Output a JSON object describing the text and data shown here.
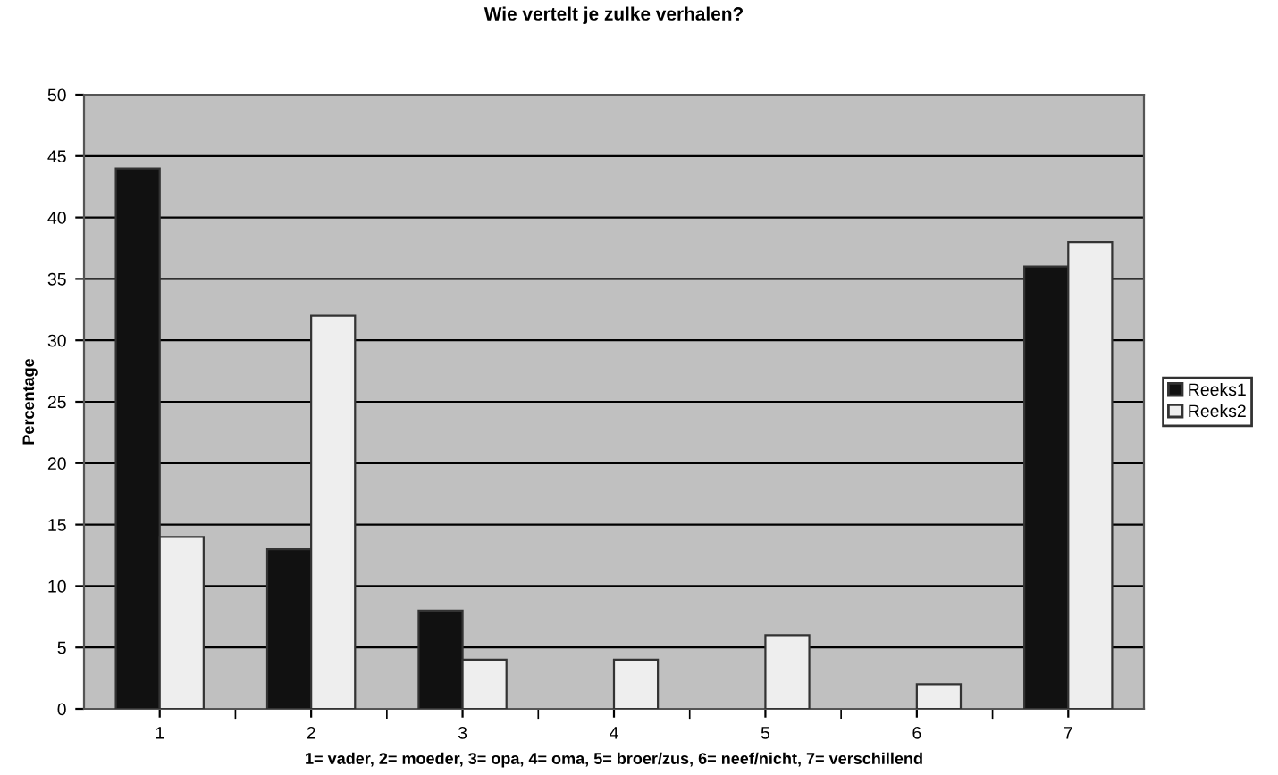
{
  "chart_data": {
    "type": "bar",
    "title": "Wie vertelt je zulke verhalen?",
    "xlabel": "1= vader, 2= moeder, 3= opa, 4= oma, 5= broer/zus, 6= neef/nicht, 7= verschillend",
    "ylabel": "Percentage",
    "categories": [
      "1",
      "2",
      "3",
      "4",
      "5",
      "6",
      "7"
    ],
    "series": [
      {
        "name": "Reeks1",
        "color": "#111111",
        "values": [
          44,
          13,
          8,
          null,
          null,
          null,
          36
        ]
      },
      {
        "name": "Reeks2",
        "color": "#eeeeee",
        "values": [
          14,
          32,
          4,
          4,
          6,
          2,
          38
        ]
      }
    ],
    "ylim": [
      0,
      50
    ],
    "yticks": [
      0,
      5,
      10,
      15,
      20,
      25,
      30,
      35,
      40,
      45,
      50
    ],
    "grid": "y",
    "legend": "right"
  }
}
